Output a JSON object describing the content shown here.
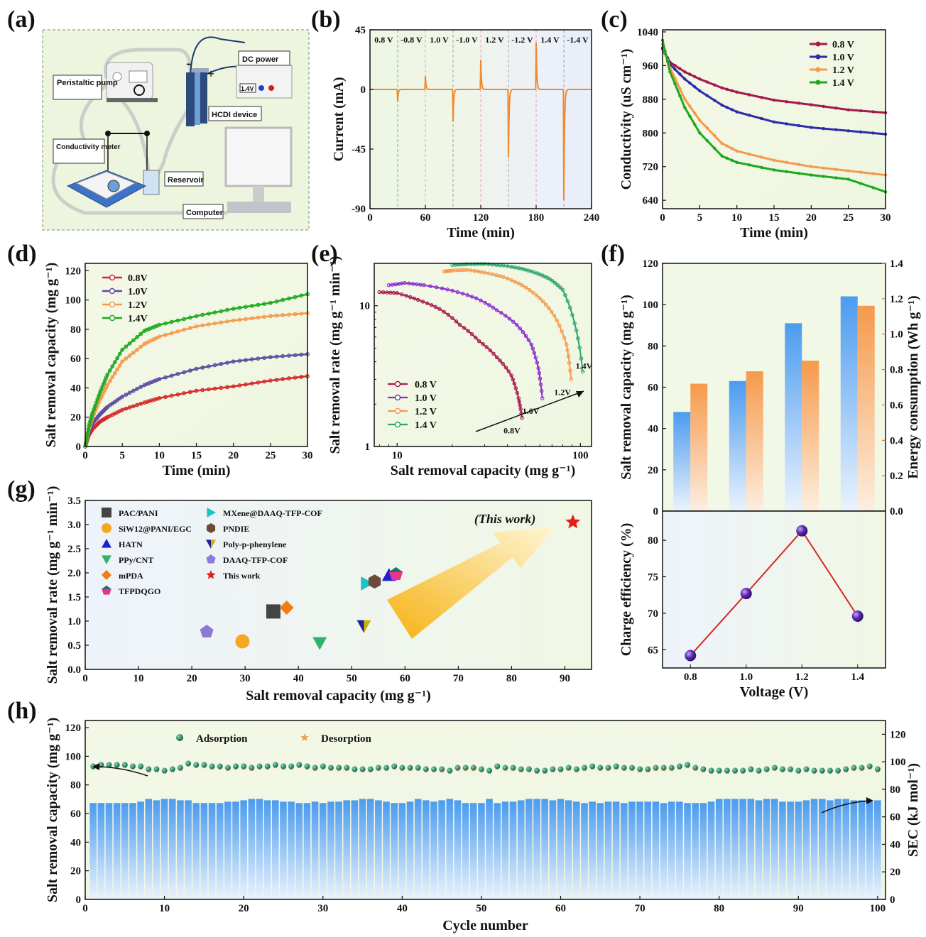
{
  "panel_labels": [
    "(a)",
    "(b)",
    "(c)",
    "(d)",
    "(e)",
    "(f)",
    "(g)",
    "(h)"
  ],
  "schematic": {
    "labels": [
      "DC power",
      "Peristaltic pump",
      "HCDI device",
      "Conductivity meter",
      "Reservoir",
      "Computer",
      "1.4V",
      "-",
      "+"
    ]
  },
  "chart_data": [
    {
      "panel": "(b)",
      "type": "line",
      "xlabel": "Time (min)",
      "ylabel": "Current (mA)",
      "xlim": [
        0,
        240
      ],
      "ylim": [
        -90,
        45
      ],
      "xticks": [
        0,
        60,
        120,
        180,
        240
      ],
      "yticks": [
        45,
        0,
        -45,
        -90
      ],
      "color": "#f08a2e",
      "step_labels": [
        {
          "text": "0.8 V",
          "color": "#d41c1c"
        },
        {
          "text": "-0.8 V",
          "color": "#1f3fd1"
        },
        {
          "text": "1.0 V",
          "color": "#d41c1c"
        },
        {
          "text": "-1.0 V",
          "color": "#1f3fd1"
        },
        {
          "text": "1.2 V",
          "color": "#d41c1c"
        },
        {
          "text": "-1.2 V",
          "color": "#1f3fd1"
        },
        {
          "text": "1.4 V",
          "color": "#d41c1c"
        },
        {
          "text": "-1.4 V",
          "color": "#1f3fd1"
        }
      ],
      "step_boundaries_min": [
        30,
        60,
        90,
        120,
        150,
        180,
        210
      ],
      "spikes": [
        {
          "t": 30,
          "peak": -9
        },
        {
          "t": 60,
          "peak": 10
        },
        {
          "t": 90,
          "peak": -24
        },
        {
          "t": 120,
          "peak": 22
        },
        {
          "t": 150,
          "peak": -51
        },
        {
          "t": 180,
          "peak": 35
        },
        {
          "t": 210,
          "peak": -83
        }
      ]
    },
    {
      "panel": "(c)",
      "type": "line",
      "xlabel": "Time (min)",
      "ylabel": "Conductivity (uS cm⁻¹)",
      "xlim": [
        0,
        30
      ],
      "ylim": [
        620,
        1045
      ],
      "xticks": [
        0,
        5,
        10,
        15,
        20,
        25,
        30
      ],
      "yticks": [
        640,
        720,
        800,
        880,
        960,
        1040
      ],
      "legend_position": "top-right",
      "series": [
        {
          "name": "0.8 V",
          "color": "#a3194d",
          "x": [
            0,
            1,
            3,
            5,
            8,
            10,
            15,
            20,
            25,
            30
          ],
          "values": [
            1000,
            968,
            945,
            928,
            907,
            897,
            878,
            867,
            855,
            848
          ]
        },
        {
          "name": "1.0 V",
          "color": "#2c2ca8",
          "x": [
            0,
            1,
            3,
            5,
            8,
            10,
            15,
            20,
            25,
            30
          ],
          "values": [
            1002,
            963,
            928,
            900,
            866,
            850,
            826,
            813,
            805,
            797
          ]
        },
        {
          "name": "1.2 V",
          "color": "#f59a4b",
          "x": [
            0,
            1,
            3,
            5,
            8,
            10,
            15,
            20,
            25,
            30
          ],
          "values": [
            1010,
            955,
            880,
            830,
            775,
            757,
            735,
            720,
            710,
            700
          ]
        },
        {
          "name": "1.4 V",
          "color": "#1ea81e",
          "x": [
            0,
            1,
            3,
            5,
            8,
            10,
            15,
            20,
            25,
            30
          ],
          "values": [
            1020,
            945,
            860,
            800,
            745,
            730,
            712,
            700,
            690,
            660
          ]
        }
      ]
    },
    {
      "panel": "(d)",
      "type": "line",
      "xlabel": "Time (min)",
      "ylabel": "Salt removal capacity (mg g⁻¹)",
      "xlim": [
        0,
        30
      ],
      "ylim": [
        0,
        125
      ],
      "xticks": [
        0,
        5,
        10,
        15,
        20,
        25,
        30
      ],
      "yticks": [
        0,
        20,
        40,
        60,
        80,
        100,
        120
      ],
      "legend_position": "top-left",
      "series": [
        {
          "name": "0.8V",
          "color": "#d42828",
          "x": [
            0,
            0.5,
            1,
            2,
            3,
            5,
            8,
            10,
            15,
            20,
            25,
            30
          ],
          "values": [
            0,
            8,
            12,
            17,
            20,
            25,
            30,
            33,
            38,
            41,
            45,
            48
          ]
        },
        {
          "name": "1.0V",
          "color": "#5a4ba0",
          "x": [
            0,
            0.5,
            1,
            2,
            3,
            5,
            8,
            10,
            15,
            20,
            25,
            30
          ],
          "values": [
            0,
            10,
            16,
            22,
            27,
            34,
            42,
            46,
            53,
            58,
            61,
            63
          ]
        },
        {
          "name": "1.2V",
          "color": "#f59a4b",
          "x": [
            0,
            0.5,
            1,
            2,
            3,
            5,
            8,
            10,
            15,
            20,
            25,
            30
          ],
          "values": [
            0,
            12,
            20,
            32,
            42,
            58,
            70,
            75,
            82,
            86,
            89,
            91
          ]
        },
        {
          "name": "1.4V",
          "color": "#1ea81e",
          "x": [
            0,
            0.5,
            1,
            2,
            3,
            5,
            8,
            10,
            15,
            20,
            25,
            30
          ],
          "values": [
            0,
            14,
            23,
            37,
            49,
            66,
            79,
            83,
            89,
            94,
            98,
            104
          ]
        }
      ]
    },
    {
      "panel": "(e)",
      "type": "line",
      "xscale": "log",
      "yscale": "log",
      "xlabel": "Salt removal capacity (mg g⁻¹)",
      "ylabel": "Salt removal rate (mg g⁻¹ min⁻¹)",
      "xlim": [
        7.5,
        115
      ],
      "ylim": [
        1,
        20
      ],
      "xticks": [
        10,
        100
      ],
      "yticks": [
        1,
        10
      ],
      "legend_position": "bottom-left",
      "end_labels": [
        "0.8V",
        "1.0V",
        "1.2V",
        "1.4V"
      ],
      "series": [
        {
          "name": "0.8 V",
          "color": "#a3194d",
          "x": [
            8,
            10,
            13,
            17,
            22,
            28,
            35,
            42,
            46,
            48
          ],
          "values": [
            12.5,
            12.3,
            11,
            9.5,
            7.3,
            5.6,
            4.3,
            3.2,
            2.2,
            1.6
          ]
        },
        {
          "name": "1.0 V",
          "color": "#8a2bd0",
          "x": [
            9,
            11,
            14,
            20,
            27,
            35,
            45,
            54,
            59,
            62
          ],
          "values": [
            14,
            14.5,
            14,
            12.8,
            11.3,
            9.3,
            7.3,
            5.3,
            3.6,
            2.2
          ]
        },
        {
          "name": "1.2 V",
          "color": "#f59a4b",
          "x": [
            18,
            20,
            24,
            30,
            38,
            48,
            60,
            72,
            84,
            89
          ],
          "values": [
            17.5,
            17.8,
            18,
            17.2,
            16,
            14,
            11.3,
            8.5,
            5.3,
            3.0
          ]
        },
        {
          "name": "1.4 V",
          "color": "#2fa36a",
          "x": [
            20,
            24,
            30,
            38,
            48,
            58,
            68,
            80,
            93,
            103
          ],
          "values": [
            19.5,
            19.7,
            19.8,
            19.3,
            18.3,
            17,
            15.5,
            13,
            7.5,
            3.4
          ]
        }
      ]
    },
    {
      "panel": "(f-top)",
      "type": "bar",
      "categories": [
        "0.8",
        "1.0",
        "1.2",
        "1.4"
      ],
      "ylabel": "Salt removal capacity (mg g⁻¹)",
      "ylabel_right": "Energy consumption (Wh g⁻¹)",
      "ylim": [
        0,
        120
      ],
      "ylim_right": [
        0,
        1.4
      ],
      "yticks": [
        0,
        20,
        40,
        60,
        80,
        100,
        120
      ],
      "yticks_right": [
        "0.0",
        "0.2",
        "0.4",
        "0.6",
        "0.8",
        "1.0",
        "1.2",
        "1.4"
      ],
      "series": [
        {
          "name": "Salt removal capacity",
          "color": "#4c9bef",
          "axis": "left",
          "values": [
            48,
            63,
            91,
            104
          ]
        },
        {
          "name": "Energy consumption",
          "color": "#f59a4b",
          "axis": "right",
          "values": [
            0.72,
            0.79,
            0.85,
            1.16
          ]
        }
      ]
    },
    {
      "panel": "(f-bottom)",
      "type": "line",
      "categories": [
        "0.8",
        "1.0",
        "1.2",
        "1.4"
      ],
      "xlabel": "Voltage (V)",
      "ylabel": "Charge efficiency (%)",
      "ylim": [
        62.5,
        84
      ],
      "yticks": [
        65,
        70,
        75,
        80
      ],
      "series": [
        {
          "name": "Charge efficiency",
          "color": "#d42828",
          "marker": "#5a2bb0",
          "values": [
            64.2,
            72.7,
            81.3,
            69.6
          ]
        }
      ]
    },
    {
      "panel": "(g)",
      "type": "scatter",
      "xlabel": "Salt removal capacity (mg g⁻¹)",
      "ylabel": "Salt removal rate (mg g⁻¹ min⁻¹)",
      "xlim": [
        0,
        95
      ],
      "ylim": [
        0,
        3.5
      ],
      "xticks": [
        0,
        10,
        20,
        30,
        40,
        50,
        60,
        70,
        80,
        90
      ],
      "yticks": [
        "0.0",
        "0.5",
        "1.0",
        "1.5",
        "2.0",
        "2.5",
        "3.0",
        "3.5"
      ],
      "annotation": "(This work)",
      "points": [
        {
          "name": "PAC/PANI",
          "marker": "square",
          "color": "#444444",
          "x": 35.3,
          "y": 1.2
        },
        {
          "name": "SiW12@PANI/EGC",
          "marker": "circle",
          "color": "#f5a623",
          "x": 29.5,
          "y": 0.58
        },
        {
          "name": "HATN",
          "marker": "triangle-up",
          "color": "#1f1fd0",
          "x": 57,
          "y": 1.95
        },
        {
          "name": "PPy/CNT",
          "marker": "triangle-down",
          "color": "#2fb36a",
          "x": 44,
          "y": 0.55
        },
        {
          "name": "mPDA",
          "marker": "diamond",
          "color": "#f07d14",
          "x": 37.8,
          "y": 1.28
        },
        {
          "name": "TFPDQGO",
          "marker": "pentagon-split",
          "color": "#e8338a",
          "x": 58.3,
          "y": 1.97
        },
        {
          "name": "MXene@DAAQ-TFP-COF",
          "marker": "triangle-right",
          "color": "#1cc4c4",
          "x": 52.8,
          "y": 1.78
        },
        {
          "name": "PNDIE",
          "marker": "hexagon",
          "color": "#6b4a3a",
          "x": 54.3,
          "y": 1.82
        },
        {
          "name": "Poly-p-phenylene",
          "marker": "triangle-down-split",
          "color": "#1f1fa0",
          "x": 52.3,
          "y": 0.9
        },
        {
          "name": "DAAQ-TFP-COF",
          "marker": "pentagon",
          "color": "#8c7ad6",
          "x": 22.8,
          "y": 0.78
        },
        {
          "name": "This work",
          "marker": "star",
          "color": "#e81b1b",
          "x": 91.5,
          "y": 3.05
        }
      ]
    },
    {
      "panel": "(h)",
      "type": "bar",
      "xlabel": "Cycle number",
      "ylabel": "Salt removal capacity (mg g⁻¹)",
      "ylabel_right": "SEC (kJ mol⁻¹)",
      "xlim": [
        0,
        101
      ],
      "ylim": [
        0,
        125
      ],
      "ylim_right": [
        0,
        130
      ],
      "xticks": [
        0,
        10,
        20,
        30,
        40,
        50,
        60,
        70,
        80,
        90,
        100
      ],
      "yticks": [
        0,
        20,
        40,
        60,
        80,
        100,
        120
      ],
      "yticks_right": [
        0,
        20,
        40,
        60,
        80,
        100,
        120
      ],
      "legend_position": "top-left",
      "legend": [
        "Adsorption",
        "Desorption"
      ],
      "sec_color": "#4c9bef",
      "adsorption_color": "#1a6e50",
      "desorption_color": "#f5a04b",
      "sec_values": [
        70,
        70,
        70,
        70,
        70,
        70,
        71,
        73,
        72,
        73,
        73,
        72,
        72,
        70,
        70,
        70,
        70,
        71,
        71,
        72,
        73,
        73,
        72,
        72,
        71,
        71,
        70,
        70,
        71,
        70,
        71,
        71,
        72,
        72,
        73,
        73,
        72,
        71,
        70,
        70,
        71,
        73,
        72,
        71,
        72,
        73,
        72,
        70,
        70,
        70,
        73,
        70,
        71,
        71,
        72,
        73,
        73,
        73,
        72,
        73,
        72,
        71,
        70,
        71,
        70,
        71,
        71,
        70,
        71,
        71,
        71,
        71,
        70,
        71,
        71,
        70,
        70,
        70,
        71,
        73,
        73,
        73,
        73,
        73,
        72,
        73,
        73,
        71,
        71,
        71,
        72,
        73,
        73,
        72,
        73,
        73,
        72,
        72,
        71,
        72
      ],
      "adsorption_values": [
        93,
        94,
        94,
        94,
        94,
        93,
        93,
        91,
        91,
        90,
        91,
        92,
        95,
        94,
        94,
        93,
        93,
        92,
        93,
        93,
        92,
        93,
        93,
        94,
        93,
        93,
        94,
        93,
        92,
        93,
        92,
        92,
        92,
        91,
        91,
        91,
        92,
        92,
        93,
        92,
        92,
        92,
        91,
        91,
        91,
        90,
        92,
        92,
        92,
        91,
        90,
        93,
        92,
        92,
        91,
        91,
        90,
        90,
        91,
        91,
        92,
        91,
        92,
        93,
        92,
        92,
        93,
        92,
        92,
        91,
        91,
        92,
        92,
        92,
        93,
        94,
        92,
        91,
        90,
        90,
        90,
        90,
        90,
        91,
        90,
        91,
        92,
        91,
        91,
        90,
        91,
        90,
        90,
        90,
        90,
        91,
        92,
        92,
        93,
        91
      ],
      "desorption_values": [
        92,
        93,
        93,
        93,
        93,
        92,
        92,
        90,
        90,
        89,
        90,
        91,
        94,
        93,
        93,
        92,
        92,
        91,
        92,
        92,
        91,
        92,
        92,
        93,
        92,
        92,
        93,
        92,
        91,
        92,
        91,
        91,
        91,
        90,
        90,
        90,
        91,
        91,
        92,
        91,
        91,
        91,
        90,
        90,
        90,
        89,
        91,
        91,
        91,
        90,
        89,
        92,
        91,
        91,
        90,
        90,
        89,
        89,
        90,
        90,
        91,
        90,
        91,
        92,
        91,
        91,
        92,
        91,
        91,
        90,
        90,
        91,
        91,
        91,
        92,
        93,
        91,
        90,
        89,
        89,
        89,
        89,
        89,
        90,
        89,
        90,
        91,
        90,
        90,
        89,
        90,
        89,
        89,
        89,
        89,
        90,
        91,
        91,
        92,
        90
      ]
    }
  ]
}
